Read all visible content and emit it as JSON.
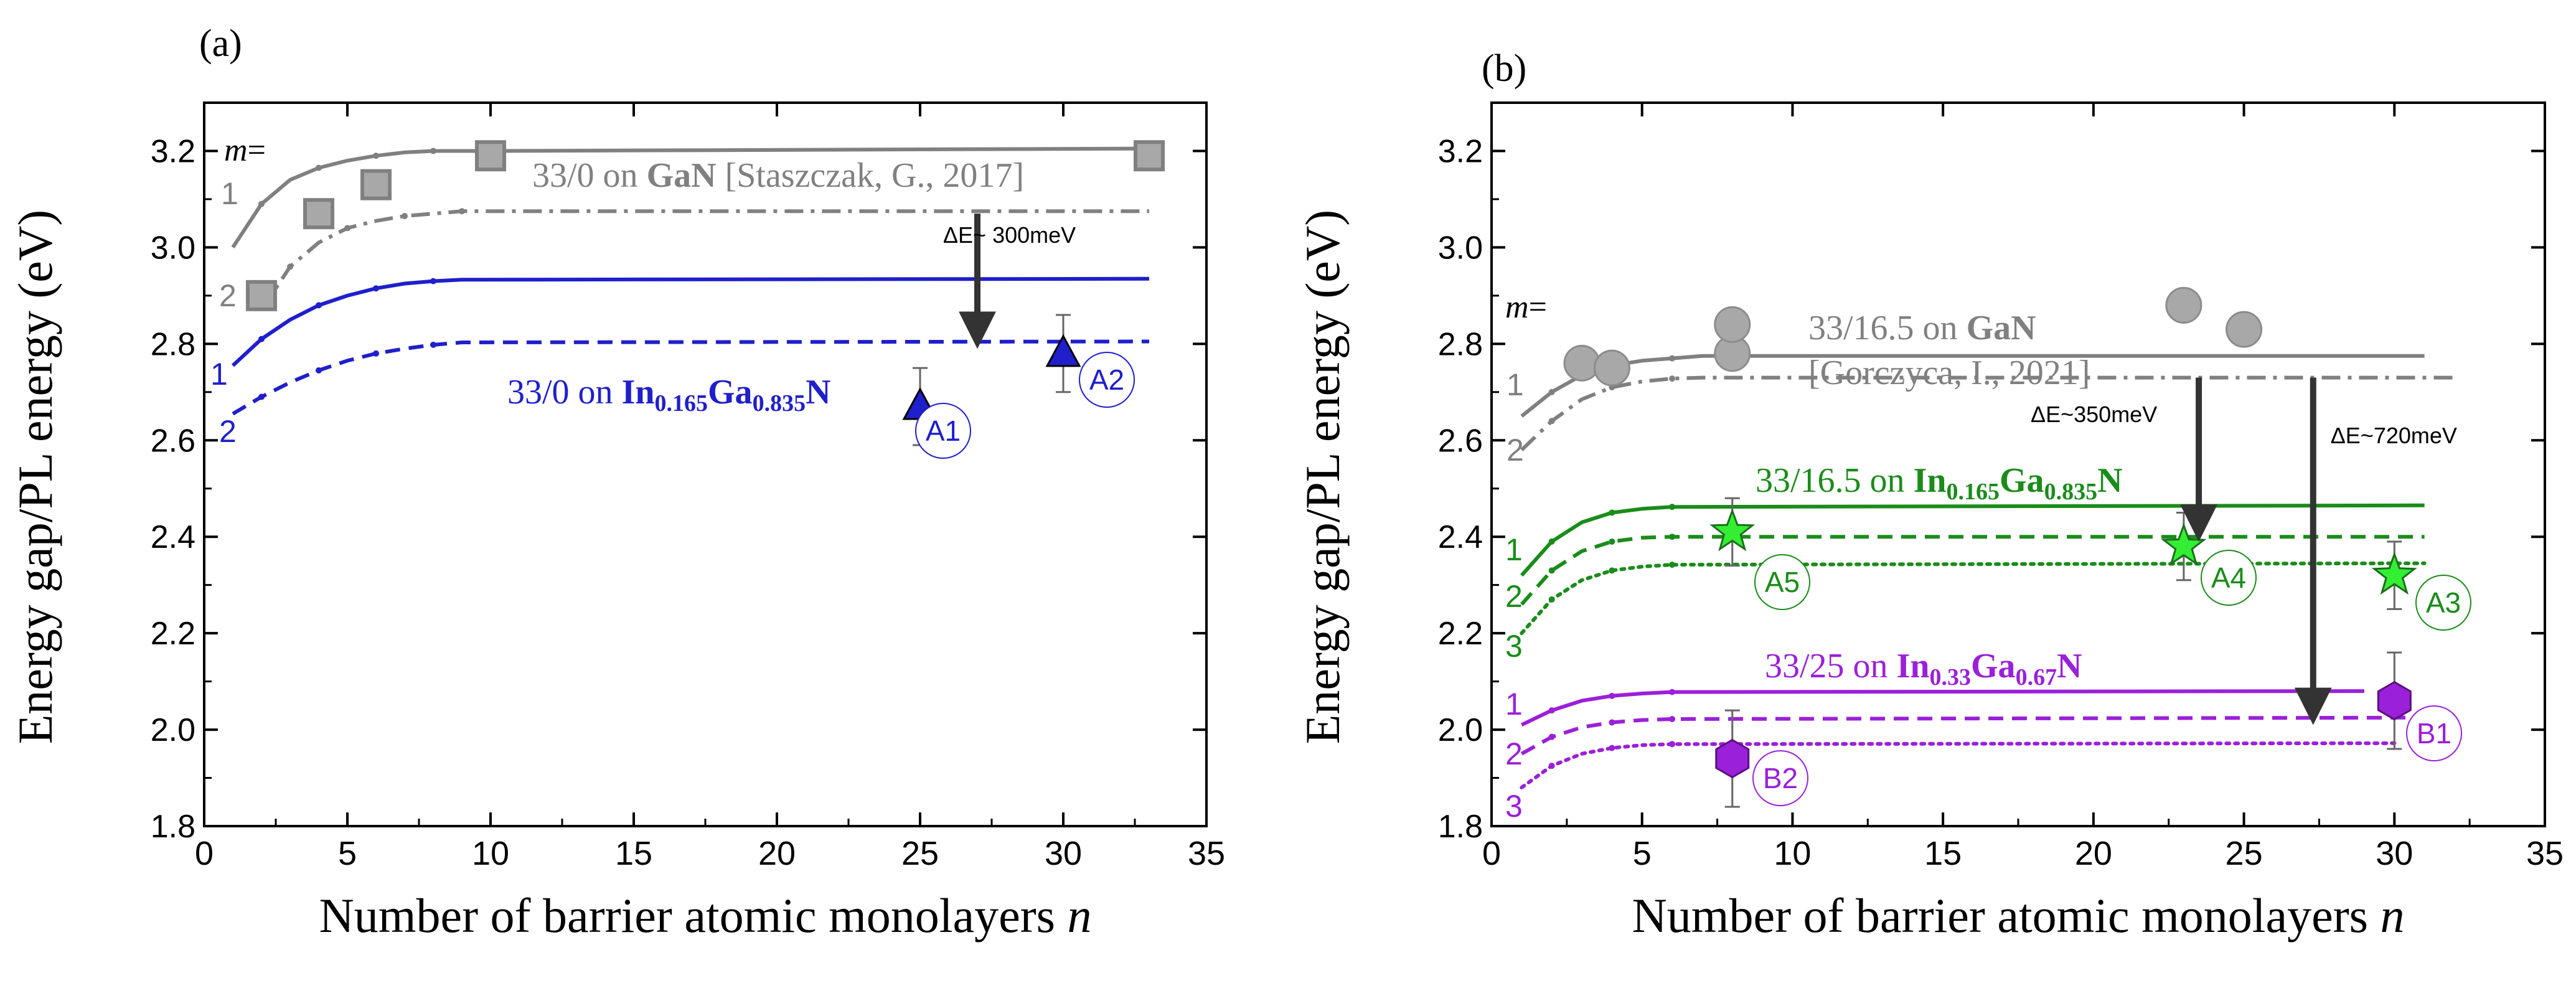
{
  "chart_data": [
    {
      "panel": "(a)",
      "type": "line",
      "xlabel": "Number of barrier atomic monolayers",
      "xlabel_var": "n",
      "ylabel": "Energy gap/PL energy (eV)",
      "xlim": [
        0,
        35
      ],
      "ylim": [
        1.8,
        3.3
      ],
      "xticks": [
        0,
        5,
        10,
        15,
        20,
        25,
        30,
        35
      ],
      "yticks": [
        1.8,
        2.0,
        2.2,
        2.4,
        2.6,
        2.8,
        3.0,
        3.2
      ],
      "m_label": "m=",
      "groups": [
        {
          "name": "33/0 on GaN",
          "label": {
            "prefix": "33/0 on ",
            "bold": "GaN",
            "suffix": " [Staszczak, G., 2017]"
          },
          "color": "#808080",
          "series": [
            {
              "m": "1",
              "style": "solid",
              "x": [
                1,
                2,
                3,
                4,
                5,
                6,
                7,
                8,
                9,
                10,
                33
              ],
              "y": [
                3.0,
                3.09,
                3.14,
                3.165,
                3.18,
                3.19,
                3.197,
                3.2,
                3.2,
                3.2,
                3.205
              ]
            },
            {
              "m": "2",
              "style": "dashdot",
              "x": [
                2,
                3,
                4,
                5,
                6,
                7,
                8,
                9,
                10,
                33
              ],
              "y": [
                2.87,
                2.96,
                3.01,
                3.04,
                3.055,
                3.065,
                3.07,
                3.075,
                3.075,
                3.075
              ]
            }
          ],
          "markers": {
            "shape": "square",
            "x": [
              2,
              4,
              6,
              10,
              33
            ],
            "y": [
              2.9,
              3.07,
              3.13,
              3.19,
              3.19
            ]
          }
        },
        {
          "name": "33/0 on In0.165Ga0.835N",
          "label": {
            "prefix": "33/0 on ",
            "formula": [
              [
                "In",
                "0.165"
              ],
              [
                "Ga",
                "0.835"
              ],
              [
                "N",
                ""
              ]
            ]
          },
          "color": "#1f1fcc",
          "series": [
            {
              "m": "1",
              "style": "solid",
              "x": [
                1,
                2,
                3,
                4,
                5,
                6,
                7,
                8,
                9,
                33
              ],
              "y": [
                2.755,
                2.81,
                2.85,
                2.88,
                2.9,
                2.915,
                2.925,
                2.93,
                2.933,
                2.935
              ]
            },
            {
              "m": "2",
              "style": "dashed",
              "x": [
                1,
                2,
                3,
                4,
                5,
                6,
                7,
                8,
                9,
                33
              ],
              "y": [
                2.655,
                2.69,
                2.72,
                2.745,
                2.765,
                2.78,
                2.79,
                2.798,
                2.803,
                2.805
              ]
            }
          ],
          "markers": {
            "shape": "triangle",
            "x": [
              25,
              30
            ],
            "y": [
              2.67,
              2.78
            ],
            "err": [
              0.08,
              0.08
            ]
          }
        }
      ],
      "annotations": [
        {
          "text": "ΔE~ 300meV",
          "x": 27,
          "y_from": 3.07,
          "y_to": 2.8
        },
        {
          "text": "A1",
          "x": 25,
          "y": 2.67
        },
        {
          "text": "A2",
          "x": 30,
          "y": 2.78
        }
      ]
    },
    {
      "panel": "(b)",
      "type": "line",
      "xlabel": "Number of barrier atomic monolayers",
      "xlabel_var": "n",
      "ylabel": "Energy gap/PL energy (eV)",
      "xlim": [
        0,
        35
      ],
      "ylim": [
        1.8,
        3.3
      ],
      "xticks": [
        0,
        5,
        10,
        15,
        20,
        25,
        30,
        35
      ],
      "yticks": [
        1.8,
        2.0,
        2.2,
        2.4,
        2.6,
        2.8,
        3.0,
        3.2
      ],
      "m_label": "m=",
      "groups": [
        {
          "name": "33/16.5 on GaN",
          "label": {
            "prefix": "33/16.5 on ",
            "bold": "GaN",
            "line2": "[Gorczyca, I., 2021]"
          },
          "color": "#808080",
          "series": [
            {
              "m": "1",
              "style": "solid",
              "x": [
                1,
                2,
                3,
                4,
                5,
                6,
                7,
                31
              ],
              "y": [
                2.65,
                2.7,
                2.735,
                2.755,
                2.765,
                2.77,
                2.775,
                2.775
              ]
            },
            {
              "m": "2",
              "style": "dashdot",
              "x": [
                1,
                2,
                3,
                4,
                5,
                6,
                7,
                32
              ],
              "y": [
                2.58,
                2.64,
                2.685,
                2.71,
                2.722,
                2.728,
                2.73,
                2.73
              ]
            }
          ],
          "markers": {
            "shape": "circle",
            "x": [
              3,
              4,
              8,
              8,
              23,
              25
            ],
            "y": [
              2.76,
              2.75,
              2.78,
              2.84,
              2.88,
              2.83
            ]
          }
        },
        {
          "name": "33/16.5 on In0.165Ga0.835N",
          "label": {
            "prefix": "33/16.5 on ",
            "formula": [
              [
                "In",
                "0.165"
              ],
              [
                "Ga",
                "0.835"
              ],
              [
                "N",
                ""
              ]
            ]
          },
          "color": "#1a8c1a",
          "series": [
            {
              "m": "1",
              "style": "solid",
              "x": [
                1,
                2,
                3,
                4,
                5,
                6,
                31
              ],
              "y": [
                2.32,
                2.39,
                2.43,
                2.45,
                2.458,
                2.462,
                2.465
              ]
            },
            {
              "m": "2",
              "style": "dashed",
              "x": [
                1,
                2,
                3,
                4,
                5,
                6,
                31
              ],
              "y": [
                2.26,
                2.33,
                2.37,
                2.39,
                2.398,
                2.4,
                2.4
              ]
            },
            {
              "m": "3",
              "style": "dotted",
              "x": [
                1,
                2,
                3,
                4,
                5,
                6,
                31
              ],
              "y": [
                2.2,
                2.27,
                2.31,
                2.33,
                2.338,
                2.342,
                2.345
              ]
            }
          ],
          "markers": {
            "shape": "star",
            "x": [
              8,
              23,
              30
            ],
            "y": [
              2.41,
              2.38,
              2.32
            ],
            "err": [
              0.07,
              0.07,
              0.07
            ]
          }
        },
        {
          "name": "33/25 on In0.33Ga0.67N",
          "label": {
            "prefix": "33/25 on ",
            "formula": [
              [
                "In",
                "0.33"
              ],
              [
                "Ga",
                "0.67"
              ],
              [
                "N",
                ""
              ]
            ]
          },
          "color": "#9b20d9",
          "series": [
            {
              "m": "1",
              "style": "solid",
              "x": [
                1,
                2,
                3,
                4,
                5,
                6,
                29
              ],
              "y": [
                2.01,
                2.04,
                2.06,
                2.07,
                2.075,
                2.078,
                2.08
              ]
            },
            {
              "m": "2",
              "style": "dashed",
              "x": [
                1,
                2,
                3,
                4,
                5,
                6,
                31
              ],
              "y": [
                1.95,
                1.985,
                2.005,
                2.015,
                2.02,
                2.022,
                2.025
              ]
            },
            {
              "m": "3",
              "style": "dotted",
              "x": [
                1,
                2,
                3,
                4,
                5,
                6,
                30
              ],
              "y": [
                1.88,
                1.925,
                1.95,
                1.962,
                1.968,
                1.97,
                1.972
              ]
            }
          ],
          "markers": {
            "shape": "hexagon",
            "x": [
              8,
              30
            ],
            "y": [
              1.94,
              2.06
            ],
            "err": [
              0.1,
              0.1
            ]
          }
        }
      ],
      "annotations": [
        {
          "text": "ΔE~350meV",
          "x": 23.5,
          "y_from": 2.73,
          "y_to": 2.4
        },
        {
          "text": "ΔE~720meV",
          "x": 27.3,
          "y_from": 2.73,
          "y_to": 2.02
        },
        {
          "text": "A3",
          "x": 30,
          "y": 2.32
        },
        {
          "text": "A4",
          "x": 23,
          "y": 2.38
        },
        {
          "text": "A5",
          "x": 8,
          "y": 2.41
        },
        {
          "text": "B1",
          "x": 30,
          "y": 2.06
        },
        {
          "text": "B2",
          "x": 8,
          "y": 1.94
        }
      ]
    }
  ]
}
